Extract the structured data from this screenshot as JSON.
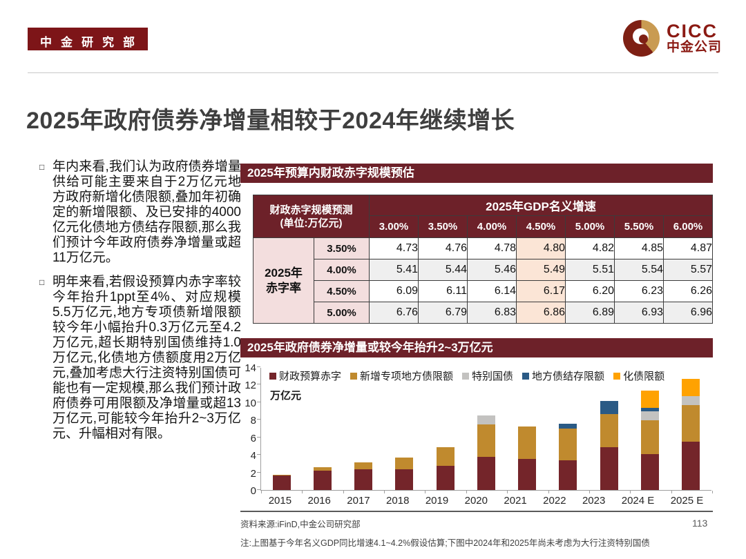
{
  "header": {
    "badge": "中金研究部",
    "logo": {
      "en": "CICC",
      "cn": "中金公司"
    }
  },
  "title": "2025年政府债券净增量相较于2024年继续增长",
  "bullets": [
    "年内来看,我们认为政府债券增量供给可能主要来自于2万亿元地方政府新增化债限额,叠加年初确定的新增限额、及已安排的4000亿元化债地方债结存限额,那么我们预计今年政府债券净增量或超11万亿元。",
    "明年来看,若假设预算内赤字率较今年抬升1ppt至4%、对应规模5.5万亿元,地方专项债新增限额较今年小幅抬升0.3万亿元至4.2万亿元,超长期特别国债维持1.0万亿元,化债地方债额度用2万亿元,叠加考虑大行注资特别国债可能也有一定规模,那么我们预计政府债券可用限额及净增量或超13万亿元,可能较今年抬升2~3万亿元、升幅相对有限。"
  ],
  "table": {
    "section_title": "2025年预算内财政赤字规模预估",
    "corner_line1": "财政赤字规模预测",
    "corner_line2": "(单位:万亿元)",
    "group_header": "2025年GDP名义增速",
    "col_headers": [
      "3.00%",
      "3.50%",
      "4.00%",
      "4.50%",
      "5.00%",
      "5.50%",
      "6.00%"
    ],
    "row_group_label": "2025年赤字率",
    "highlight_col": 3,
    "rows": [
      {
        "label": "3.50%",
        "values": [
          "4.73",
          "4.76",
          "4.78",
          "4.80",
          "4.82",
          "4.85",
          "4.87"
        ]
      },
      {
        "label": "4.00%",
        "values": [
          "5.41",
          "5.44",
          "5.46",
          "5.49",
          "5.51",
          "5.54",
          "5.57"
        ]
      },
      {
        "label": "4.50%",
        "values": [
          "6.09",
          "6.11",
          "6.14",
          "6.17",
          "6.20",
          "6.23",
          "6.26"
        ]
      },
      {
        "label": "5.00%",
        "values": [
          "6.76",
          "6.79",
          "6.83",
          "6.86",
          "6.89",
          "6.93",
          "6.96"
        ]
      }
    ]
  },
  "chart_data": {
    "type": "bar",
    "stacked": true,
    "title": "2025年政府债券净增量或较今年抬升2~3万亿元",
    "unit_label": "万亿元",
    "categories": [
      "2015",
      "2016",
      "2017",
      "2018",
      "2019",
      "2020",
      "2021",
      "2022",
      "2023",
      "2024 E",
      "2025 E"
    ],
    "series": [
      {
        "name": "财政预算赤字",
        "color": "#74252A",
        "values": [
          1.62,
          2.18,
          2.38,
          2.38,
          2.76,
          3.76,
          3.57,
          3.37,
          4.88,
          4.06,
          5.5
        ]
      },
      {
        "name": "新增专项地方债限额",
        "color": "#C08A2E",
        "values": [
          0.1,
          0.4,
          0.8,
          1.35,
          2.15,
          3.75,
          3.65,
          3.65,
          3.8,
          3.9,
          4.2
        ]
      },
      {
        "name": "特别国债",
        "color": "#C3C2C0",
        "values": [
          0,
          0,
          0,
          0,
          0,
          1.0,
          0,
          0,
          0,
          1.0,
          1.0
        ]
      },
      {
        "name": "地方债结存限额",
        "color": "#2A5A85",
        "values": [
          0,
          0,
          0,
          0,
          0,
          0,
          0,
          0.5,
          1.5,
          0.4,
          0
        ]
      },
      {
        "name": "化债限额",
        "color": "#FFA201",
        "values": [
          0,
          0,
          0,
          0,
          0,
          0,
          0,
          0,
          0,
          2.0,
          2.0
        ]
      }
    ],
    "ylim": [
      0,
      14
    ],
    "ytick_step": 2,
    "grid": false,
    "legend_position": "top"
  },
  "footer": {
    "source": "资料来源:iFinD,中金公司研究部",
    "note": "注:上图基于今年名义GDP同比增速4.1~4.2%假设估算;下图中2024年和2025年尚未考虑为大行注资特别国债",
    "page_number": "113"
  },
  "colors": {
    "section_maroon": "#6D2129",
    "badge_red": "#7D1518",
    "logo_red": "#8B1A13",
    "logo_gold": "#C99B52",
    "highlight_peach": "#FBE5D6",
    "header_pink": "#F3DEDE",
    "zebra_gray": "#EFEFEF"
  }
}
